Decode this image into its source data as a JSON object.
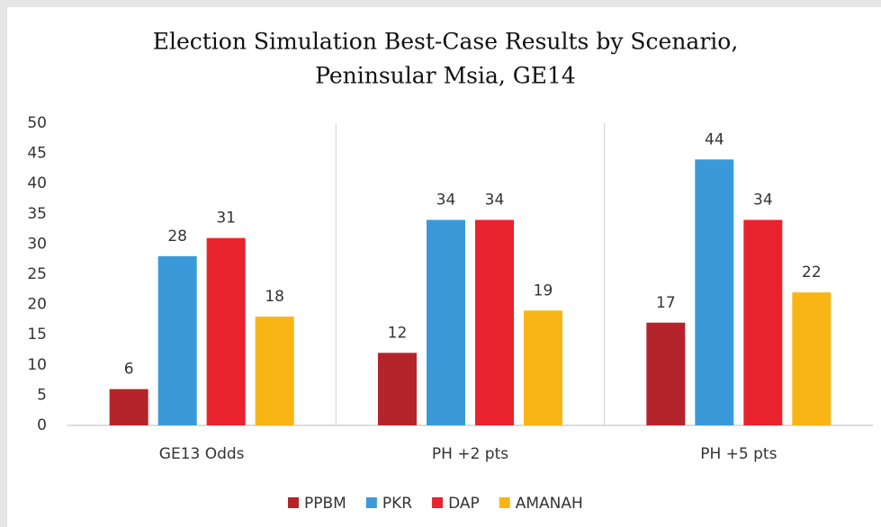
{
  "chart_data": {
    "type": "bar",
    "title": [
      "Election Simulation Best-Case Results by Scenario,",
      "Peninsular Msia, GE14"
    ],
    "categories": [
      "GE13 Odds",
      "PH +2 pts",
      "PH +5 pts"
    ],
    "series": [
      {
        "name": "PPBM",
        "color": "#b5242a",
        "values": [
          6,
          12,
          17
        ]
      },
      {
        "name": "PKR",
        "color": "#3a9ad9",
        "values": [
          28,
          34,
          44
        ]
      },
      {
        "name": "DAP",
        "color": "#e8232d",
        "values": [
          31,
          34,
          34
        ]
      },
      {
        "name": "AMANAH",
        "color": "#f9b516",
        "values": [
          18,
          19,
          22
        ]
      }
    ],
    "ylim": [
      0,
      50
    ],
    "yticks": [
      0,
      5,
      10,
      15,
      20,
      25,
      30,
      35,
      40,
      45,
      50
    ],
    "grid": false,
    "legend": "bottom"
  }
}
